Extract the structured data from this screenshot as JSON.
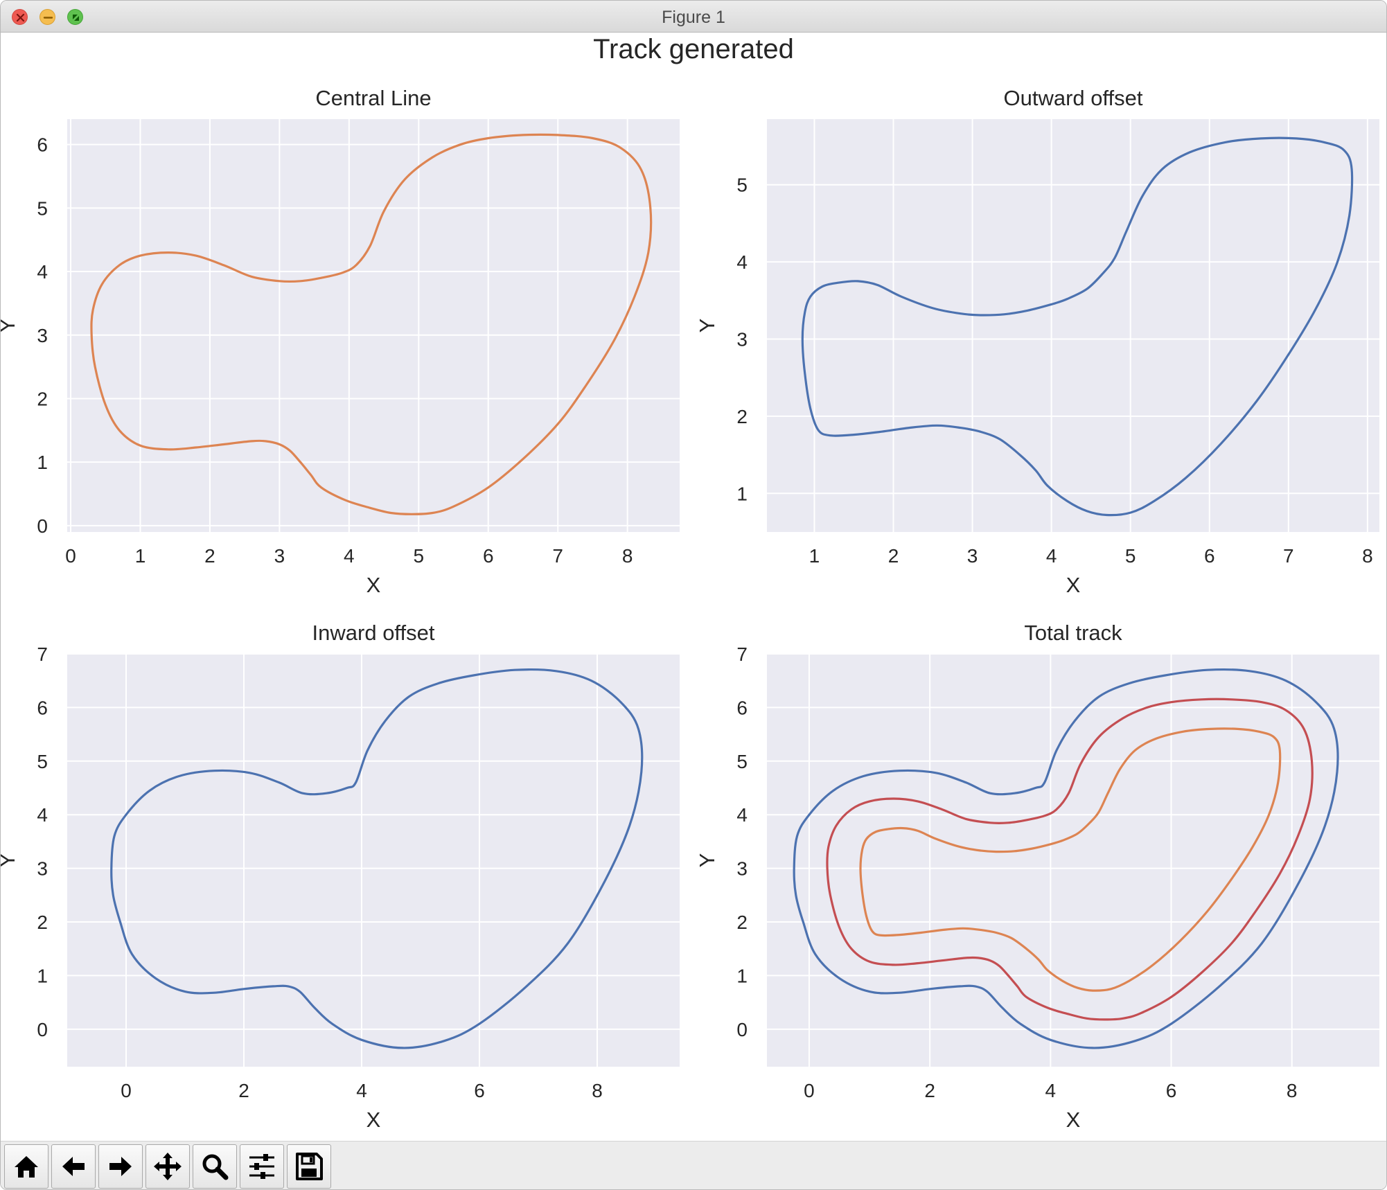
{
  "window": {
    "title": "Figure 1"
  },
  "figure": {
    "suptitle": "Track generated"
  },
  "toolbar": {
    "buttons": [
      {
        "name": "home",
        "icon": "home-icon"
      },
      {
        "name": "back",
        "icon": "arrow-left-icon"
      },
      {
        "name": "forward",
        "icon": "arrow-right-icon"
      },
      {
        "name": "pan",
        "icon": "move-icon"
      },
      {
        "name": "zoom",
        "icon": "search-icon"
      },
      {
        "name": "configure-subplots",
        "icon": "sliders-icon"
      },
      {
        "name": "save",
        "icon": "save-icon"
      }
    ]
  },
  "colors": {
    "axes_bg": "#eaeaf2",
    "grid": "#ffffff",
    "blue": "#4c72b0",
    "orange": "#dd8452",
    "red": "#c44e52",
    "text": "#262626"
  },
  "chart_data": [
    {
      "type": "line",
      "title": "Central Line",
      "xlabel": "X",
      "ylabel": "Y",
      "xlim": [
        -0.05,
        8.75
      ],
      "ylim": [
        -0.1,
        6.4
      ],
      "xticks": [
        0,
        1,
        2,
        3,
        4,
        5,
        6,
        7,
        8
      ],
      "yticks": [
        0,
        1,
        2,
        3,
        4,
        5,
        6
      ],
      "grid": true,
      "series": [
        {
          "color": "#dd8452",
          "track": "center",
          "closed": true,
          "x": [
            0.3,
            0.32,
            0.45,
            0.7,
            1.0,
            1.4,
            1.8,
            2.2,
            2.6,
            3.0,
            3.3,
            3.6,
            3.9,
            4.1,
            4.3,
            4.5,
            4.8,
            5.2,
            5.6,
            6.0,
            6.5,
            7.0,
            7.5,
            7.9,
            8.2,
            8.33,
            8.3,
            8.1,
            7.8,
            7.4,
            7.0,
            6.5,
            6.0,
            5.5,
            5.2,
            4.9,
            4.6,
            4.3,
            3.95,
            3.6,
            3.45,
            3.3,
            3.15,
            3.0,
            2.8,
            2.6,
            2.2,
            1.8,
            1.4,
            1.0,
            0.7,
            0.5,
            0.35
          ],
          "y": [
            3.0,
            3.4,
            3.8,
            4.1,
            4.25,
            4.3,
            4.25,
            4.1,
            3.92,
            3.85,
            3.85,
            3.9,
            3.98,
            4.1,
            4.4,
            4.95,
            5.45,
            5.8,
            6.0,
            6.1,
            6.15,
            6.15,
            6.1,
            5.95,
            5.6,
            5.0,
            4.3,
            3.6,
            2.9,
            2.2,
            1.6,
            1.05,
            0.6,
            0.3,
            0.2,
            0.18,
            0.2,
            0.28,
            0.4,
            0.6,
            0.8,
            1.0,
            1.18,
            1.28,
            1.33,
            1.33,
            1.28,
            1.23,
            1.2,
            1.26,
            1.5,
            1.9,
            2.5
          ]
        }
      ]
    },
    {
      "type": "line",
      "title": "Outward offset",
      "xlabel": "X",
      "ylabel": "Y",
      "xlim": [
        0.4,
        8.15
      ],
      "ylim": [
        0.5,
        5.85
      ],
      "xticks": [
        1,
        2,
        3,
        4,
        5,
        6,
        7,
        8
      ],
      "yticks": [
        1,
        2,
        3,
        4,
        5
      ],
      "grid": true,
      "series": [
        {
          "color": "#4c72b0",
          "track": "outward",
          "closed": true,
          "x": [
            0.85,
            0.88,
            0.95,
            1.1,
            1.3,
            1.55,
            1.8,
            2.1,
            2.5,
            2.85,
            3.1,
            3.4,
            3.7,
            4.0,
            4.2,
            4.45,
            4.65,
            4.8,
            4.95,
            5.15,
            5.4,
            5.75,
            6.2,
            6.65,
            7.1,
            7.45,
            7.7,
            7.8,
            7.77,
            7.62,
            7.35,
            7.0,
            6.6,
            6.15,
            5.7,
            5.3,
            5.0,
            4.7,
            4.45,
            4.2,
            3.95,
            3.8,
            3.6,
            3.35,
            3.1,
            2.85,
            2.55,
            2.2,
            1.85,
            1.5,
            1.2,
            1.05,
            0.95,
            0.88
          ],
          "y": [
            3.0,
            3.35,
            3.55,
            3.68,
            3.73,
            3.75,
            3.7,
            3.55,
            3.4,
            3.33,
            3.31,
            3.32,
            3.37,
            3.45,
            3.52,
            3.65,
            3.85,
            4.05,
            4.4,
            4.85,
            5.2,
            5.42,
            5.55,
            5.6,
            5.6,
            5.55,
            5.45,
            5.2,
            4.6,
            4.0,
            3.4,
            2.8,
            2.2,
            1.65,
            1.2,
            0.9,
            0.75,
            0.72,
            0.77,
            0.9,
            1.1,
            1.3,
            1.5,
            1.7,
            1.8,
            1.85,
            1.88,
            1.85,
            1.8,
            1.76,
            1.75,
            1.82,
            2.1,
            2.55
          ]
        }
      ]
    },
    {
      "type": "line",
      "title": "Inward offset",
      "xlabel": "X",
      "ylabel": "Y",
      "xlim": [
        -1.0,
        9.4
      ],
      "ylim": [
        -0.7,
        7.0
      ],
      "xticks": [
        0,
        2,
        4,
        6,
        8
      ],
      "yticks": [
        0,
        1,
        2,
        3,
        4,
        5,
        6,
        7
      ],
      "grid": true,
      "series": [
        {
          "color": "#4c72b0",
          "track": "inward",
          "closed": true,
          "x": [
            -0.25,
            -0.2,
            0.0,
            0.4,
            0.9,
            1.5,
            2.1,
            2.6,
            3.0,
            3.4,
            3.75,
            3.9,
            4.1,
            4.4,
            4.8,
            5.3,
            5.9,
            6.6,
            7.3,
            7.9,
            8.4,
            8.7,
            8.75,
            8.55,
            8.1,
            7.5,
            6.8,
            6.0,
            5.4,
            4.7,
            4.0,
            3.5,
            3.2,
            2.95,
            2.75,
            2.5,
            2.0,
            1.5,
            1.0,
            0.5,
            0.1,
            -0.1,
            -0.22
          ],
          "y": [
            3.0,
            3.6,
            4.0,
            4.45,
            4.72,
            4.82,
            4.78,
            4.6,
            4.4,
            4.4,
            4.5,
            4.6,
            5.2,
            5.75,
            6.2,
            6.45,
            6.6,
            6.7,
            6.68,
            6.5,
            6.1,
            5.6,
            4.8,
            3.8,
            2.7,
            1.6,
            0.8,
            0.1,
            -0.22,
            -0.35,
            -0.2,
            0.1,
            0.4,
            0.7,
            0.8,
            0.8,
            0.75,
            0.68,
            0.7,
            0.95,
            1.4,
            2.0,
            2.5
          ]
        }
      ]
    },
    {
      "type": "line",
      "title": "Total track",
      "xlabel": "X",
      "ylabel": "Y",
      "xlim": [
        -0.7,
        9.45
      ],
      "ylim": [
        -0.7,
        7.0
      ],
      "xticks": [
        0,
        2,
        4,
        6,
        8
      ],
      "yticks": [
        0,
        1,
        2,
        3,
        4,
        5,
        6,
        7
      ],
      "grid": true,
      "series": [
        {
          "color": "#4c72b0",
          "track": "inward",
          "closed": true,
          "x": [
            -0.25,
            -0.2,
            0.0,
            0.4,
            0.9,
            1.5,
            2.1,
            2.6,
            3.0,
            3.4,
            3.75,
            3.9,
            4.1,
            4.4,
            4.8,
            5.3,
            5.9,
            6.6,
            7.3,
            7.9,
            8.4,
            8.7,
            8.75,
            8.55,
            8.1,
            7.5,
            6.8,
            6.0,
            5.4,
            4.7,
            4.0,
            3.5,
            3.2,
            2.95,
            2.75,
            2.5,
            2.0,
            1.5,
            1.0,
            0.5,
            0.1,
            -0.1,
            -0.22
          ],
          "y": [
            3.0,
            3.6,
            4.0,
            4.45,
            4.72,
            4.82,
            4.78,
            4.6,
            4.4,
            4.4,
            4.5,
            4.6,
            5.2,
            5.75,
            6.2,
            6.45,
            6.6,
            6.7,
            6.68,
            6.5,
            6.1,
            5.6,
            4.8,
            3.8,
            2.7,
            1.6,
            0.8,
            0.1,
            -0.22,
            -0.35,
            -0.2,
            0.1,
            0.4,
            0.7,
            0.8,
            0.8,
            0.75,
            0.68,
            0.7,
            0.95,
            1.4,
            2.0,
            2.5
          ]
        },
        {
          "color": "#c44e52",
          "track": "center",
          "closed": true,
          "x": [
            0.3,
            0.32,
            0.45,
            0.7,
            1.0,
            1.4,
            1.8,
            2.2,
            2.6,
            3.0,
            3.3,
            3.6,
            3.9,
            4.1,
            4.3,
            4.5,
            4.8,
            5.2,
            5.6,
            6.0,
            6.5,
            7.0,
            7.5,
            7.9,
            8.2,
            8.33,
            8.3,
            8.1,
            7.8,
            7.4,
            7.0,
            6.5,
            6.0,
            5.5,
            5.2,
            4.9,
            4.6,
            4.3,
            3.95,
            3.6,
            3.45,
            3.3,
            3.15,
            3.0,
            2.8,
            2.6,
            2.2,
            1.8,
            1.4,
            1.0,
            0.7,
            0.5,
            0.35
          ],
          "y": [
            3.0,
            3.4,
            3.8,
            4.1,
            4.25,
            4.3,
            4.25,
            4.1,
            3.92,
            3.85,
            3.85,
            3.9,
            3.98,
            4.1,
            4.4,
            4.95,
            5.45,
            5.8,
            6.0,
            6.1,
            6.15,
            6.15,
            6.1,
            5.95,
            5.6,
            5.0,
            4.3,
            3.6,
            2.9,
            2.2,
            1.6,
            1.05,
            0.6,
            0.3,
            0.2,
            0.18,
            0.2,
            0.28,
            0.4,
            0.6,
            0.8,
            1.0,
            1.18,
            1.28,
            1.33,
            1.33,
            1.28,
            1.23,
            1.2,
            1.26,
            1.5,
            1.9,
            2.5
          ]
        },
        {
          "color": "#dd8452",
          "track": "outward",
          "closed": true,
          "x": [
            0.85,
            0.88,
            0.95,
            1.1,
            1.3,
            1.55,
            1.8,
            2.1,
            2.5,
            2.85,
            3.1,
            3.4,
            3.7,
            4.0,
            4.2,
            4.45,
            4.65,
            4.8,
            4.95,
            5.15,
            5.4,
            5.75,
            6.2,
            6.65,
            7.1,
            7.45,
            7.7,
            7.8,
            7.77,
            7.62,
            7.35,
            7.0,
            6.6,
            6.15,
            5.7,
            5.3,
            5.0,
            4.7,
            4.45,
            4.2,
            3.95,
            3.8,
            3.6,
            3.35,
            3.1,
            2.85,
            2.55,
            2.2,
            1.85,
            1.5,
            1.2,
            1.05,
            0.95,
            0.88
          ],
          "y": [
            3.0,
            3.35,
            3.55,
            3.68,
            3.73,
            3.75,
            3.7,
            3.55,
            3.4,
            3.33,
            3.31,
            3.32,
            3.37,
            3.45,
            3.52,
            3.65,
            3.85,
            4.05,
            4.4,
            4.85,
            5.2,
            5.42,
            5.55,
            5.6,
            5.6,
            5.55,
            5.45,
            5.2,
            4.6,
            4.0,
            3.4,
            2.8,
            2.2,
            1.65,
            1.2,
            0.9,
            0.75,
            0.72,
            0.77,
            0.9,
            1.1,
            1.3,
            1.5,
            1.7,
            1.8,
            1.85,
            1.88,
            1.85,
            1.8,
            1.76,
            1.75,
            1.82,
            2.1,
            2.55
          ]
        }
      ]
    }
  ]
}
